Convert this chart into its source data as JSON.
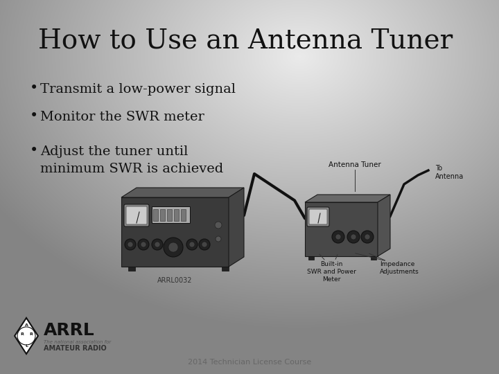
{
  "title": "How to Use an Antenna Tuner",
  "bullets": [
    "Transmit a low-power signal",
    "Monitor the SWR meter",
    "Adjust the tuner until\nminimum SWR is achieved"
  ],
  "footer": "2014 Technician License Course",
  "title_fontsize": 28,
  "bullet_fontsize": 14,
  "footer_fontsize": 8,
  "title_color": "#111111",
  "bullet_color": "#111111",
  "footer_color": "#666666",
  "arrl_color": "#111111"
}
